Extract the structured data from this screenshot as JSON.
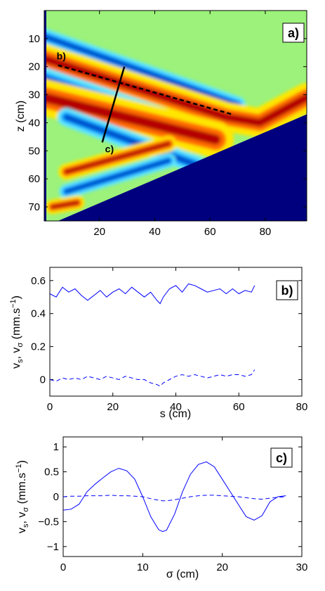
{
  "chart_data": [
    {
      "type": "heatmap",
      "panel_label": "a)",
      "ylabel": "z (cm)",
      "xlabel": "",
      "xlim": [
        0,
        95
      ],
      "ylim": [
        75,
        0
      ],
      "xticks": [
        20,
        40,
        60,
        80
      ],
      "yticks": [
        10,
        20,
        30,
        40,
        50,
        60,
        70
      ],
      "colormap": "jet",
      "slope_line": {
        "x1": 5,
        "z1": 75,
        "x2": 95,
        "z2": 37
      },
      "bands": [
        {
          "tone": "low",
          "path": [
            [
              -2,
              8.5
            ],
            [
              70,
              33.5
            ]
          ],
          "width": 2.2
        },
        {
          "tone": "high",
          "path": [
            [
              -2,
              16.5
            ],
            [
              66,
              38
            ],
            [
              78,
              40
            ],
            [
              95,
              31
            ]
          ],
          "width": 4
        },
        {
          "tone": "low",
          "path": [
            [
              -2,
              23.5
            ],
            [
              62,
              45
            ]
          ],
          "width": 3
        },
        {
          "tone": "high",
          "path": [
            [
              -2,
              30.5
            ],
            [
              62,
              46
            ]
          ],
          "width": 5
        },
        {
          "tone": "low",
          "path": [
            [
              8,
              38
            ],
            [
              55,
              55
            ]
          ],
          "width": 2.5
        },
        {
          "tone": "high",
          "path": [
            [
              8,
              57.5
            ],
            [
              45,
              47.5
            ]
          ],
          "width": 2.2
        },
        {
          "tone": "low",
          "path": [
            [
              8,
              64.5
            ],
            [
              45,
              53.5
            ]
          ],
          "width": 2
        },
        {
          "tone": "high",
          "path": [
            [
              3,
              70
            ],
            [
              12,
              68.5
            ]
          ],
          "width": 2
        }
      ],
      "transect_b": {
        "label": "b)",
        "from": [
          5,
          19.5
        ],
        "to": [
          68,
          37
        ]
      },
      "transect_c": {
        "label": "c)",
        "from": [
          21,
          47
        ],
        "to": [
          29,
          20
        ]
      }
    },
    {
      "type": "line",
      "panel_label": "b)",
      "xlabel": "s (cm)",
      "ylabel_main": "v",
      "ylabel_sub1": "s",
      "ylabel_sep": ", v",
      "ylabel_sub2": "σ",
      "ylabel_unit_open": " (mm.s",
      "ylabel_unit_exp": "−1",
      "ylabel_unit_close": ")",
      "xlim": [
        0,
        80
      ],
      "ylim": [
        -0.1,
        0.68
      ],
      "xticks": [
        0,
        20,
        40,
        60,
        80
      ],
      "yticks": [
        0,
        0.2,
        0.4,
        0.6
      ],
      "ytick_labels": [
        "0",
        "0.2",
        "0.4",
        "0.6"
      ],
      "x": [
        0,
        2,
        4,
        6,
        8,
        10,
        12,
        14,
        16,
        18,
        20,
        22,
        24,
        26,
        28,
        30,
        32,
        34,
        35,
        36,
        38,
        40,
        42,
        44,
        46,
        48,
        50,
        52,
        54,
        56,
        58,
        60,
        62,
        64,
        65
      ],
      "series": [
        {
          "style": "solid",
          "values": [
            0.52,
            0.5,
            0.56,
            0.53,
            0.55,
            0.51,
            0.48,
            0.51,
            0.54,
            0.5,
            0.53,
            0.55,
            0.52,
            0.56,
            0.53,
            0.5,
            0.53,
            0.48,
            0.46,
            0.5,
            0.55,
            0.57,
            0.53,
            0.58,
            0.57,
            0.55,
            0.53,
            0.54,
            0.55,
            0.52,
            0.55,
            0.52,
            0.54,
            0.53,
            0.57
          ]
        },
        {
          "style": "dashed",
          "values": [
            0.0,
            -0.01,
            0.01,
            0.0,
            0.01,
            0.0,
            0.02,
            0.01,
            0.0,
            0.02,
            0.01,
            0.0,
            0.02,
            0.01,
            0.0,
            0.0,
            -0.02,
            -0.03,
            -0.04,
            -0.02,
            0.0,
            0.02,
            0.03,
            0.02,
            0.03,
            0.02,
            0.01,
            0.02,
            0.03,
            0.02,
            0.03,
            0.03,
            0.02,
            0.03,
            0.06
          ]
        }
      ]
    },
    {
      "type": "line",
      "panel_label": "c)",
      "xlabel": "σ (cm)",
      "ylabel_main": "v",
      "ylabel_sub1": "s",
      "ylabel_sep": ", v",
      "ylabel_sub2": "σ",
      "ylabel_unit_open": " (mm.s",
      "ylabel_unit_exp": "−1",
      "ylabel_unit_close": ")",
      "xlim": [
        0,
        30
      ],
      "ylim": [
        -1.2,
        1.2
      ],
      "xticks": [
        0,
        10,
        20,
        30
      ],
      "yticks": [
        -1,
        -0.5,
        0,
        0.5,
        1
      ],
      "ytick_labels": [
        "−1",
        "−0.5",
        "0",
        "0.5",
        "1"
      ],
      "x": [
        0,
        1,
        2,
        3,
        4,
        5,
        6,
        7,
        8,
        9,
        10,
        11,
        12,
        12.5,
        13,
        14,
        15,
        16,
        17,
        18,
        19,
        20,
        21,
        22,
        23,
        24,
        25,
        26,
        27,
        28
      ],
      "series": [
        {
          "style": "solid",
          "values": [
            -0.27,
            -0.25,
            -0.15,
            0.1,
            0.25,
            0.38,
            0.5,
            0.57,
            0.52,
            0.35,
            0.0,
            -0.4,
            -0.66,
            -0.7,
            -0.67,
            -0.35,
            0.1,
            0.45,
            0.65,
            0.7,
            0.6,
            0.35,
            0.1,
            -0.15,
            -0.4,
            -0.47,
            -0.38,
            -0.1,
            0.0,
            0.02
          ]
        },
        {
          "style": "dashed",
          "values": [
            0.0,
            0.01,
            0.01,
            0.02,
            0.02,
            0.02,
            0.03,
            0.02,
            0.02,
            0.01,
            0.0,
            -0.04,
            -0.07,
            -0.08,
            -0.08,
            -0.06,
            -0.03,
            0.0,
            0.02,
            0.03,
            0.03,
            0.02,
            0.01,
            0.0,
            -0.02,
            -0.04,
            -0.05,
            -0.03,
            -0.01,
            0.0
          ]
        }
      ]
    }
  ]
}
